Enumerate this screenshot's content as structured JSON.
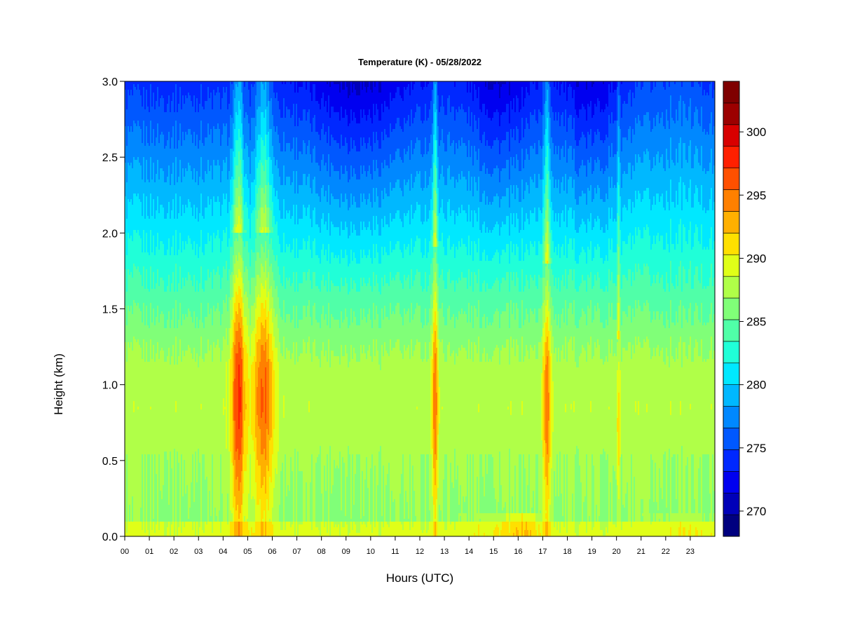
{
  "chart_data": {
    "type": "heatmap",
    "title": "Temperature (K) - 05/28/2022",
    "xlabel": "Hours (UTC)",
    "ylabel": "Height (km)",
    "xlim": [
      0,
      24
    ],
    "ylim": [
      0,
      3
    ],
    "x_ticks": [
      "00",
      "01",
      "02",
      "03",
      "04",
      "05",
      "06",
      "07",
      "08",
      "09",
      "10",
      "11",
      "12",
      "13",
      "14",
      "15",
      "16",
      "17",
      "18",
      "19",
      "20",
      "21",
      "22",
      "23"
    ],
    "y_ticks": [
      "0.0",
      "0.5",
      "1.0",
      "1.5",
      "2.0",
      "2.5",
      "3.0"
    ],
    "colorbar": {
      "min": 268,
      "max": 304,
      "step": 2,
      "tick_values": [
        270,
        275,
        280,
        285,
        290,
        295,
        300
      ],
      "colors": [
        "#00007f",
        "#0000b8",
        "#0000f0",
        "#0028ff",
        "#0058ff",
        "#0088ff",
        "#00b8ff",
        "#00e8ff",
        "#20ffd8",
        "#50ffa8",
        "#80ff78",
        "#b0ff48",
        "#e0ff18",
        "#ffe000",
        "#ffb000",
        "#ff8000",
        "#ff5000",
        "#ff2000",
        "#d80000",
        "#9c0000",
        "#7f0000"
      ]
    },
    "legend": "right colorbar",
    "grid": false,
    "warm_events": [
      {
        "start_hour": 4.25,
        "end_hour": 5.0,
        "bottom_km": 0.4,
        "top_km": 2.0,
        "peak_k": 302
      },
      {
        "start_hour": 5.1,
        "end_hour": 6.2,
        "bottom_km": 0.45,
        "top_km": 2.0,
        "peak_k": 300
      },
      {
        "start_hour": 12.45,
        "end_hour": 12.8,
        "bottom_km": 0.45,
        "top_km": 1.9,
        "peak_k": 299
      },
      {
        "start_hour": 16.95,
        "end_hour": 17.4,
        "bottom_km": 0.45,
        "top_km": 1.8,
        "peak_k": 299
      },
      {
        "start_hour": 20.0,
        "end_hour": 20.15,
        "bottom_km": 0.5,
        "top_km": 1.3,
        "peak_k": 296
      }
    ]
  }
}
